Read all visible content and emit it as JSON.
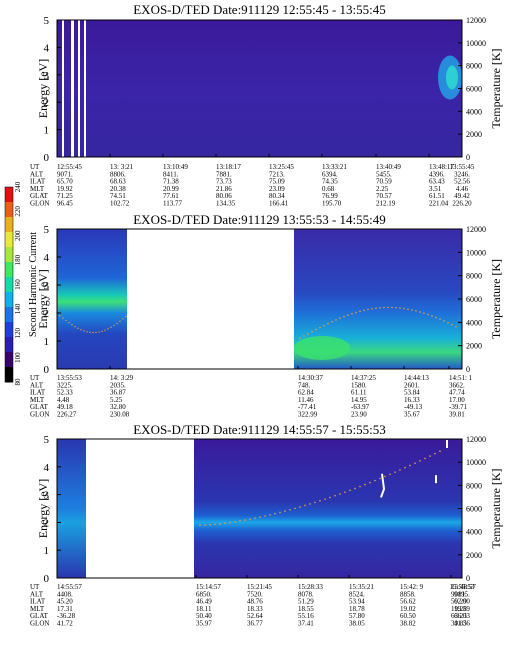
{
  "chart_data": [
    {
      "type": "heatmap",
      "title": "EXOS-D/TED   Date:911129   12:55:45 - 13:55:45",
      "ylabel": "Energy [eV]",
      "ylabel_right": "Temperature [K]",
      "ylim": [
        0,
        5
      ],
      "y2lim": [
        0,
        12000
      ],
      "yticks": [
        0,
        1,
        2,
        3,
        4,
        5
      ],
      "y2ticks": [
        0,
        2000,
        4000,
        6000,
        8000,
        10000,
        12000
      ],
      "time_rows": [
        {
          "label": "UT",
          "values": [
            "12:55:45",
            "13: 3:21",
            "13:10:49",
            "13:18:17",
            "13:25:45",
            "13:33:21",
            "13:40:49",
            "13:48:17",
            "13:55:45"
          ]
        },
        {
          "label": "ALT",
          "values": [
            "9071.",
            "8806.",
            "8411.",
            "7881.",
            "7213.",
            "6394.",
            "5455.",
            "4396.",
            "3246."
          ]
        },
        {
          "label": "ILAT",
          "values": [
            "65.70",
            "68.63",
            "71.38",
            "73.73",
            "75.09",
            "74.35",
            "70.59",
            "63.43",
            "52.56"
          ]
        },
        {
          "label": "MLT",
          "values": [
            "19.92",
            "20.38",
            "20.99",
            "21.86",
            "23.09",
            "0.68",
            "2.25",
            "3.51",
            "4.46"
          ]
        },
        {
          "label": "GLAT",
          "values": [
            "71.25",
            "74.51",
            "77.61",
            "80.06",
            "80.34",
            "76.99",
            "70.57",
            "61.51",
            "49.42"
          ]
        },
        {
          "label": "GLON",
          "values": [
            "96.45",
            "102.72",
            "113.77",
            "134.35",
            "166.41",
            "195.70",
            "212.19",
            "221.04",
            "226.20"
          ]
        }
      ]
    },
    {
      "type": "heatmap",
      "title": "EXOS-D/TED   Date:911129   13:55:53 - 14:55:49",
      "ylabel": "Energy [eV]",
      "ylabel_right": "Temperature [K]",
      "ylim": [
        0,
        5
      ],
      "y2lim": [
        0,
        12000
      ],
      "yticks": [
        0,
        1,
        2,
        3,
        4,
        5
      ],
      "y2ticks": [
        0,
        2000,
        4000,
        6000,
        8000,
        10000,
        12000
      ],
      "time_rows": [
        {
          "label": "UT",
          "values": [
            "13:55:53",
            "14: 3:29",
            "14:30:37",
            "14:37:25",
            "14:44:13",
            "14:51: 1"
          ]
        },
        {
          "label": "ALT",
          "values": [
            "3225.",
            "2035.",
            "748.",
            "1580.",
            "2601.",
            "3662."
          ]
        },
        {
          "label": "ILAT",
          "values": [
            "52.33",
            "36.87",
            "62.84",
            "61.11",
            "53.84",
            "47.74"
          ]
        },
        {
          "label": "MLT",
          "values": [
            "4.48",
            "5.25",
            "11.46",
            "14.95",
            "16.33",
            "17.00"
          ]
        },
        {
          "label": "GLAT",
          "values": [
            "49.18",
            "32.80",
            "-77.41",
            "-63.97",
            "-49.13",
            "-39.71"
          ]
        },
        {
          "label": "GLON",
          "values": [
            "226.27",
            "230.08",
            "322.99",
            "23.90",
            "35.67",
            "39.81"
          ]
        }
      ]
    },
    {
      "type": "heatmap",
      "title": "EXOS-D/TED   Date:911129   14:55:57 - 15:55:53",
      "ylabel": "Energy [eV]",
      "ylabel_right": "Temperature [K]",
      "ylim": [
        0,
        5
      ],
      "y2lim": [
        0,
        12000
      ],
      "yticks": [
        0,
        1,
        2,
        3,
        4,
        5
      ],
      "y2ticks": [
        0,
        2000,
        4000,
        6000,
        8000,
        10000,
        12000
      ],
      "time_rows": [
        {
          "label": "UT",
          "values": [
            "14:55:57",
            "15:14:57",
            "15:21:45",
            "15:28:33",
            "15:35:21",
            "15:42: 9",
            "15:48:57",
            "15:55:53"
          ]
        },
        {
          "label": "ALT",
          "values": [
            "4408.",
            "6850.",
            "7520.",
            "8078.",
            "8524.",
            "8858.",
            "9081.",
            "9195."
          ]
        },
        {
          "label": "ILAT",
          "values": [
            "45.20",
            "46.49",
            "48.76",
            "51.29",
            "53.94",
            "56.62",
            "59.29",
            "62.00"
          ]
        },
        {
          "label": "MLT",
          "values": [
            "17.31",
            "18.11",
            "18.33",
            "18.55",
            "18.78",
            "19.02",
            "19.28",
            "19.59"
          ]
        },
        {
          "label": "GLAT",
          "values": [
            "-36.28",
            "50.40",
            "52.64",
            "55.16",
            "57.80",
            "60.50",
            "63.23",
            "66.03"
          ]
        },
        {
          "label": "GLON",
          "values": [
            "41.72",
            "35.97",
            "36.77",
            "37.41",
            "38.05",
            "38.82",
            "39.85",
            "41.36"
          ]
        }
      ]
    }
  ],
  "colorbar": {
    "label": "Second Harmonic Current",
    "ticks": [
      "80",
      "100",
      "120",
      "140",
      "160",
      "180",
      "200",
      "220",
      "240"
    ],
    "colors": [
      "#000000",
      "#3a006a",
      "#2b1fb0",
      "#1f3fd8",
      "#1a74e8",
      "#12b0e8",
      "#19d8a8",
      "#3fe860",
      "#a8e83a",
      "#e8e83a",
      "#e8b020",
      "#e86018",
      "#e01010"
    ]
  }
}
